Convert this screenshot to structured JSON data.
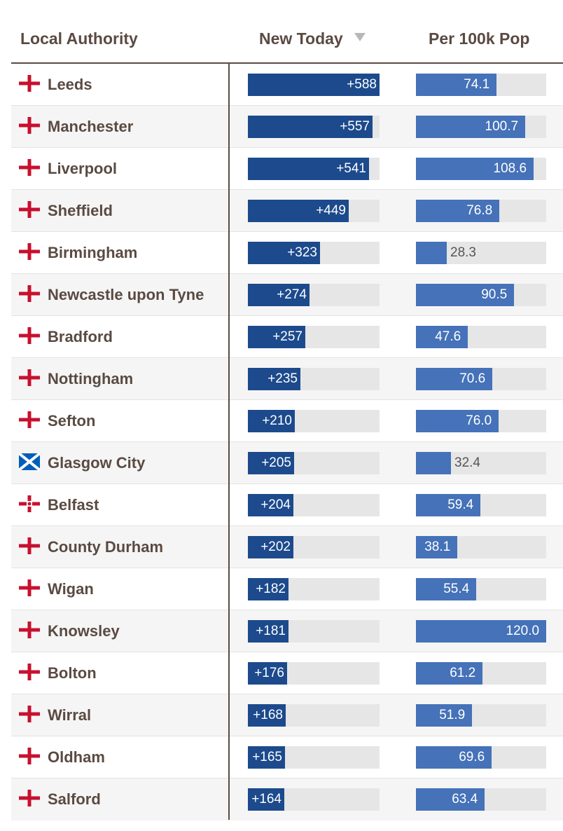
{
  "header": {
    "authority": "Local Authority",
    "new_today": "New Today",
    "per_100k": "Per 100k Pop",
    "sort_icon": "sort-descending-icon"
  },
  "colors": {
    "new_today_bar": "#1c4a8c",
    "per_100k_bar": "#4572b8",
    "track": "#e6e6e6",
    "england_cross": "#c8102e",
    "scotland_blue": "#005eb8"
  },
  "chart_data": {
    "type": "table",
    "categories": [
      "Leeds",
      "Manchester",
      "Liverpool",
      "Sheffield",
      "Birmingham",
      "Newcastle upon Tyne",
      "Bradford",
      "Nottingham",
      "Sefton",
      "Glasgow City",
      "Belfast",
      "County Durham",
      "Wigan",
      "Knowsley",
      "Bolton",
      "Wirral",
      "Oldham",
      "Salford"
    ],
    "series": [
      {
        "name": "New Today",
        "values": [
          588,
          557,
          541,
          449,
          323,
          274,
          257,
          235,
          210,
          205,
          204,
          202,
          182,
          181,
          176,
          168,
          165,
          164
        ],
        "max": 588
      },
      {
        "name": "Per 100k Pop",
        "values": [
          74.1,
          100.7,
          108.6,
          76.8,
          28.3,
          90.5,
          47.6,
          70.6,
          76.0,
          32.4,
          59.4,
          38.1,
          55.4,
          120.0,
          61.2,
          51.9,
          69.6,
          63.4
        ],
        "max": 120.0
      }
    ],
    "sort": "New Today descending",
    "rows": [
      {
        "authority": "Leeds",
        "flag": "england-flag-icon",
        "new_today": 588,
        "new_today_label": "+588",
        "per_100k": 74.1,
        "per_100k_label": "74.1"
      },
      {
        "authority": "Manchester",
        "flag": "england-flag-icon",
        "new_today": 557,
        "new_today_label": "+557",
        "per_100k": 100.7,
        "per_100k_label": "100.7"
      },
      {
        "authority": "Liverpool",
        "flag": "england-flag-icon",
        "new_today": 541,
        "new_today_label": "+541",
        "per_100k": 108.6,
        "per_100k_label": "108.6"
      },
      {
        "authority": "Sheffield",
        "flag": "england-flag-icon",
        "new_today": 449,
        "new_today_label": "+449",
        "per_100k": 76.8,
        "per_100k_label": "76.8"
      },
      {
        "authority": "Birmingham",
        "flag": "england-flag-icon",
        "new_today": 323,
        "new_today_label": "+323",
        "per_100k": 28.3,
        "per_100k_label": "28.3"
      },
      {
        "authority": "Newcastle upon Tyne",
        "flag": "england-flag-icon",
        "new_today": 274,
        "new_today_label": "+274",
        "per_100k": 90.5,
        "per_100k_label": "90.5"
      },
      {
        "authority": "Bradford",
        "flag": "england-flag-icon",
        "new_today": 257,
        "new_today_label": "+257",
        "per_100k": 47.6,
        "per_100k_label": "47.6"
      },
      {
        "authority": "Nottingham",
        "flag": "england-flag-icon",
        "new_today": 235,
        "new_today_label": "+235",
        "per_100k": 70.6,
        "per_100k_label": "70.6"
      },
      {
        "authority": "Sefton",
        "flag": "england-flag-icon",
        "new_today": 210,
        "new_today_label": "+210",
        "per_100k": 76.0,
        "per_100k_label": "76.0"
      },
      {
        "authority": "Glasgow City",
        "flag": "scotland-flag-icon",
        "new_today": 205,
        "new_today_label": "+205",
        "per_100k": 32.4,
        "per_100k_label": "32.4"
      },
      {
        "authority": "Belfast",
        "flag": "northern-ireland-flag-icon",
        "new_today": 204,
        "new_today_label": "+204",
        "per_100k": 59.4,
        "per_100k_label": "59.4"
      },
      {
        "authority": "County Durham",
        "flag": "england-flag-icon",
        "new_today": 202,
        "new_today_label": "+202",
        "per_100k": 38.1,
        "per_100k_label": "38.1"
      },
      {
        "authority": "Wigan",
        "flag": "england-flag-icon",
        "new_today": 182,
        "new_today_label": "+182",
        "per_100k": 55.4,
        "per_100k_label": "55.4"
      },
      {
        "authority": "Knowsley",
        "flag": "england-flag-icon",
        "new_today": 181,
        "new_today_label": "+181",
        "per_100k": 120.0,
        "per_100k_label": "120.0"
      },
      {
        "authority": "Bolton",
        "flag": "england-flag-icon",
        "new_today": 176,
        "new_today_label": "+176",
        "per_100k": 61.2,
        "per_100k_label": "61.2"
      },
      {
        "authority": "Wirral",
        "flag": "england-flag-icon",
        "new_today": 168,
        "new_today_label": "+168",
        "per_100k": 51.9,
        "per_100k_label": "51.9"
      },
      {
        "authority": "Oldham",
        "flag": "england-flag-icon",
        "new_today": 165,
        "new_today_label": "+165",
        "per_100k": 69.6,
        "per_100k_label": "69.6"
      },
      {
        "authority": "Salford",
        "flag": "england-flag-icon",
        "new_today": 164,
        "new_today_label": "+164",
        "per_100k": 63.4,
        "per_100k_label": "63.4"
      }
    ]
  }
}
